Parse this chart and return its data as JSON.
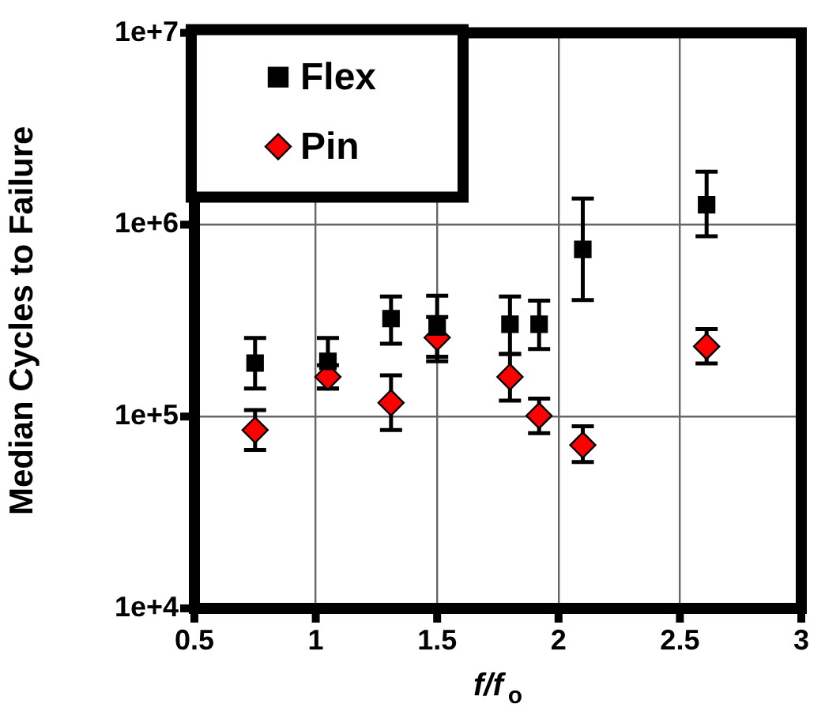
{
  "chart_data": {
    "type": "scatter",
    "xlabel": "f/f$_{o}$",
    "ylabel": "Median Cycles to Failure",
    "xlim": [
      0.5,
      3
    ],
    "xticks": [
      0.5,
      1,
      1.5,
      2,
      2.5,
      3
    ],
    "ylim": [
      10000,
      10000000
    ],
    "log": "y",
    "yticks": [
      {
        "value": 10000,
        "label": "1e+4"
      },
      {
        "value": 100000,
        "label": "1e+5"
      },
      {
        "value": 1000000,
        "label": "1e+6"
      },
      {
        "value": 10000000,
        "label": "1e+7"
      }
    ],
    "grid": true,
    "legend": "top left",
    "series": [
      {
        "name": "Flex",
        "color": "#000000",
        "marker": "square",
        "x": [
          0.75,
          1.05,
          1.31,
          1.5,
          1.8,
          1.92,
          2.1,
          2.61
        ],
        "values": [
          190000,
          194000,
          324000,
          293000,
          303000,
          303000,
          743000,
          1270000
        ],
        "errors": [
          [
            140000,
            257000
          ],
          [
            140000,
            257000
          ],
          [
            240000,
            422000
          ],
          [
            205000,
            427000
          ],
          [
            212000,
            422000
          ],
          [
            225000,
            402000
          ],
          [
            405000,
            1370000
          ],
          [
            871000,
            1890000
          ]
        ]
      },
      {
        "name": "Pin",
        "color": "#ff0000",
        "marker": "diamond",
        "x": [
          0.75,
          1.05,
          1.31,
          1.5,
          1.8,
          1.92,
          2.1,
          2.61
        ],
        "values": [
          85000,
          161000,
          118000,
          258000,
          161000,
          101000,
          71000,
          232000
        ],
        "errors": [
          [
            67000,
            108000
          ],
          [
            140000,
            185000
          ],
          [
            85000,
            164000
          ],
          [
            194000,
            330000
          ],
          [
            121000,
            212000
          ],
          [
            82000,
            124000
          ],
          [
            58000,
            89000
          ],
          [
            189000,
            286000
          ]
        ]
      }
    ]
  }
}
